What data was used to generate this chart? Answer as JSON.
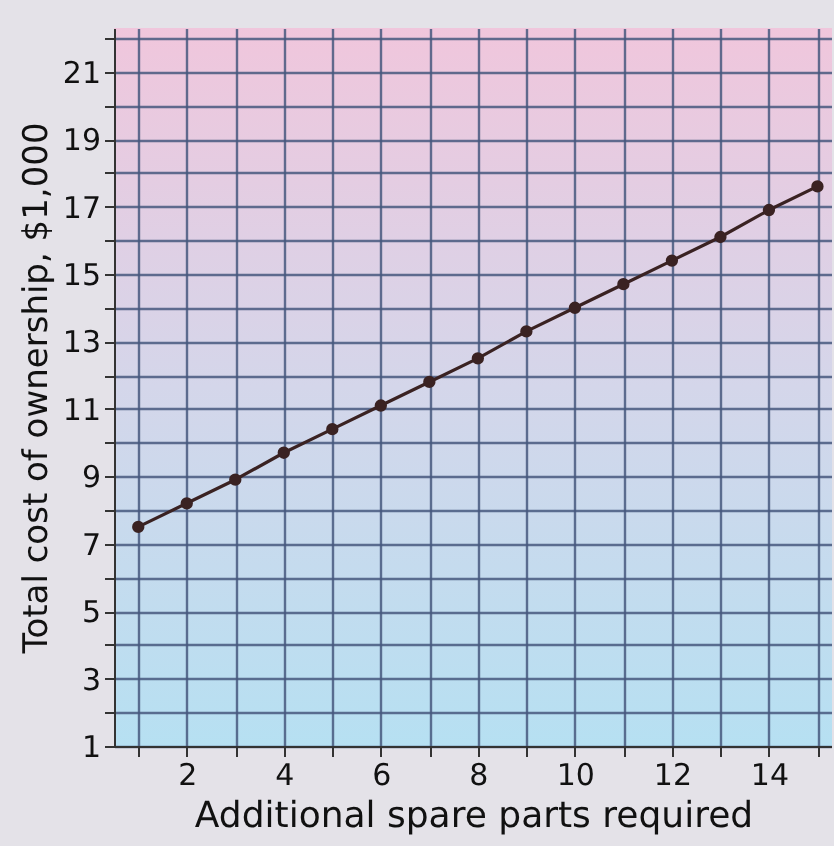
{
  "chart_data": {
    "type": "line",
    "xlabel": "Additional spare parts required",
    "ylabel": "Total cost of ownership, $1,000",
    "x": [
      1,
      2,
      3,
      4,
      5,
      6,
      7,
      8,
      9,
      10,
      11,
      12,
      13,
      14,
      15
    ],
    "series": [
      {
        "color": "#3a2222",
        "values": [
          7.5,
          8.2,
          8.9,
          9.7,
          10.4,
          11.1,
          11.8,
          12.5,
          13.3,
          14.0,
          14.7,
          15.4,
          16.1,
          16.9,
          17.6
        ]
      }
    ],
    "marker": "circle",
    "line_style": "solid",
    "grid": true,
    "xlim": [
      0.5,
      15.3
    ],
    "xticks": [
      {
        "value": 1,
        "label": null
      },
      2,
      {
        "value": 3,
        "label": null
      },
      4,
      {
        "value": 5,
        "label": null
      },
      6,
      {
        "value": 7,
        "label": null
      },
      8,
      {
        "value": 9,
        "label": null
      },
      10,
      {
        "value": 11,
        "label": null
      },
      12,
      {
        "value": 13,
        "label": null
      },
      14,
      {
        "value": 15,
        "label": null
      }
    ],
    "ylim": [
      1,
      22.3
    ],
    "yticks": [
      1,
      {
        "value": 2,
        "label": null
      },
      3,
      {
        "value": 4,
        "label": null
      },
      5,
      {
        "value": 6,
        "label": null
      },
      7,
      {
        "value": 8,
        "label": null
      },
      9,
      {
        "value": 10,
        "label": null
      },
      11,
      {
        "value": 12,
        "label": null
      },
      13,
      {
        "value": 14,
        "label": null
      },
      15,
      {
        "value": 16,
        "label": null
      },
      17,
      {
        "value": 18,
        "label": null
      },
      19,
      {
        "value": 20,
        "label": null
      },
      21,
      {
        "value": 22,
        "label": null
      }
    ]
  }
}
